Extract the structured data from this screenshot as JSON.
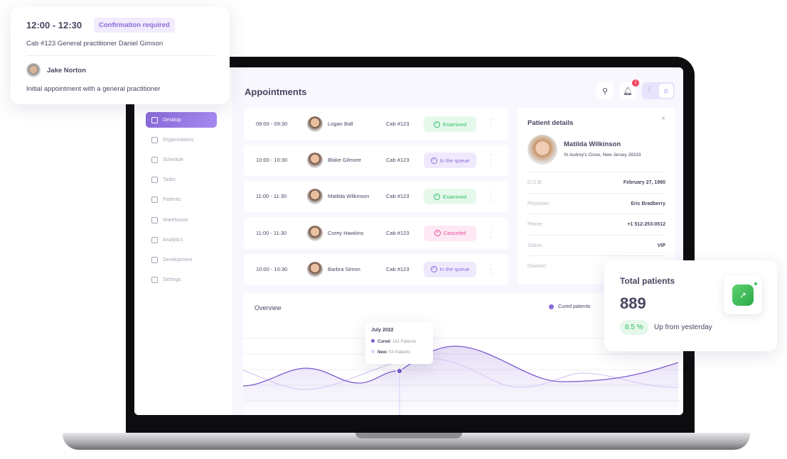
{
  "popup": {
    "time": "12:00 - 12:30",
    "status": "Confirmation required",
    "cabinet": "Cab #123  General practitioner Daniel Gimson",
    "patient": "Jake Norton",
    "note": "Initial appointment with a general practitioner"
  },
  "header": {
    "title": "Appointments",
    "notification_count": "1"
  },
  "sidebar": {
    "items": [
      {
        "label": "Desktop",
        "icon": "grid-icon",
        "active": true
      },
      {
        "label": "Organizations",
        "icon": "flag-icon"
      },
      {
        "label": "Schedule",
        "icon": "calendar-icon"
      },
      {
        "label": "Tasks",
        "icon": "star-icon"
      },
      {
        "label": "Patients",
        "icon": "user-icon"
      },
      {
        "label": "Warehouse",
        "icon": "box-icon"
      },
      {
        "label": "Analytics",
        "icon": "chart-icon"
      },
      {
        "label": "Development",
        "icon": "bolt-icon"
      },
      {
        "label": "Settings",
        "icon": "gear-icon"
      }
    ]
  },
  "appointments": [
    {
      "time": "09:00 - 09:30",
      "name": "Logan Ball",
      "cab": "Cab #123",
      "status": "Examined"
    },
    {
      "time": "10:00 - 10:30",
      "name": "Blake Gilmore",
      "cab": "Cab #123",
      "status": "In the queue"
    },
    {
      "time": "11:00 - 11:30",
      "name": "Matilda Wilkinson",
      "cab": "Cab #123",
      "status": "Examined"
    },
    {
      "time": "11:00 - 11:30",
      "name": "Corey Hawkins",
      "cab": "Cab #123",
      "status": "Canceled"
    },
    {
      "time": "10:00 - 10:30",
      "name": "Barbra Simon",
      "cab": "Cab #123",
      "status": "In the queue"
    }
  ],
  "status_colors": {
    "Examined": [
      "#e6f8ec",
      "#2fbf63"
    ],
    "In the queue": [
      "#efe9fd",
      "#8a6ad8"
    ],
    "Canceled": [
      "#fde8f3",
      "#ea4b9b"
    ]
  },
  "patient_details": {
    "title": "Patient details",
    "name": "Matilda Wilkinson",
    "address": "St Audrey's Close, New Jersey 28333",
    "fields": [
      {
        "k": "D.O.B:",
        "v": "February 27, 1990"
      },
      {
        "k": "Physician:",
        "v": "Eric Bradberry"
      },
      {
        "k": "Phone:",
        "v": "+1 512-253-0512"
      },
      {
        "k": "Status:",
        "v": "VIP"
      },
      {
        "k": "Disease:",
        "v": ""
      }
    ]
  },
  "overview": {
    "title": "Overview",
    "legend": "Cured patients",
    "tooltip": {
      "month": "July 2022",
      "cured_label": "Cured:",
      "cured_value": "141 Patients",
      "new_label": "New:",
      "new_value": "53 Patients"
    }
  },
  "total": {
    "title": "Total patients",
    "value": "889",
    "change": "8.5 %",
    "change_text": "Up from yesterday"
  },
  "colors": {
    "accent": "#8a6ad8",
    "green": "#2fbf63"
  }
}
